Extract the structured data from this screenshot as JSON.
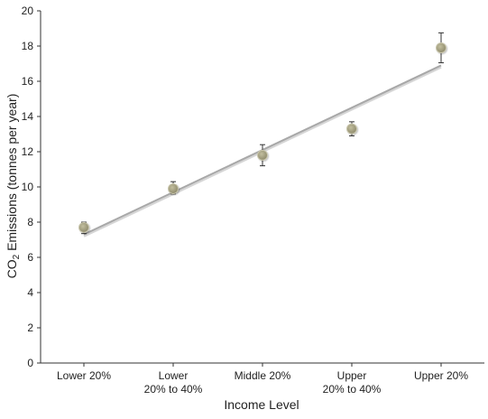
{
  "chart_data": {
    "type": "scatter",
    "xlabel": "Income Level",
    "ylabel_main": "CO",
    "ylabel_sub": "2",
    "ylabel_rest": " Emissions (tonnes per year)",
    "categories": [
      [
        "Lower 20%"
      ],
      [
        "Lower",
        "20% to 40%"
      ],
      [
        "Middle 20%"
      ],
      [
        "Upper",
        "20% to 40%"
      ],
      [
        "Upper 20%"
      ]
    ],
    "ylim": [
      0,
      20
    ],
    "yticks": [
      0,
      2,
      4,
      6,
      8,
      10,
      12,
      14,
      16,
      18,
      20
    ],
    "grid": false,
    "series": [
      {
        "values": [
          7.7,
          9.9,
          11.8,
          13.3,
          17.9
        ],
        "err_low": [
          7.35,
          9.6,
          11.2,
          12.9,
          17.05
        ],
        "err_high": [
          8.0,
          10.3,
          12.4,
          13.7,
          18.75
        ]
      }
    ],
    "trendline": {
      "start": 7.3,
      "end": 16.9
    },
    "colors": {
      "point_fill": "#9b9777",
      "point_stroke": "#c9c6ad",
      "trendline": "#a8a8a8",
      "axis": "#333333"
    }
  }
}
